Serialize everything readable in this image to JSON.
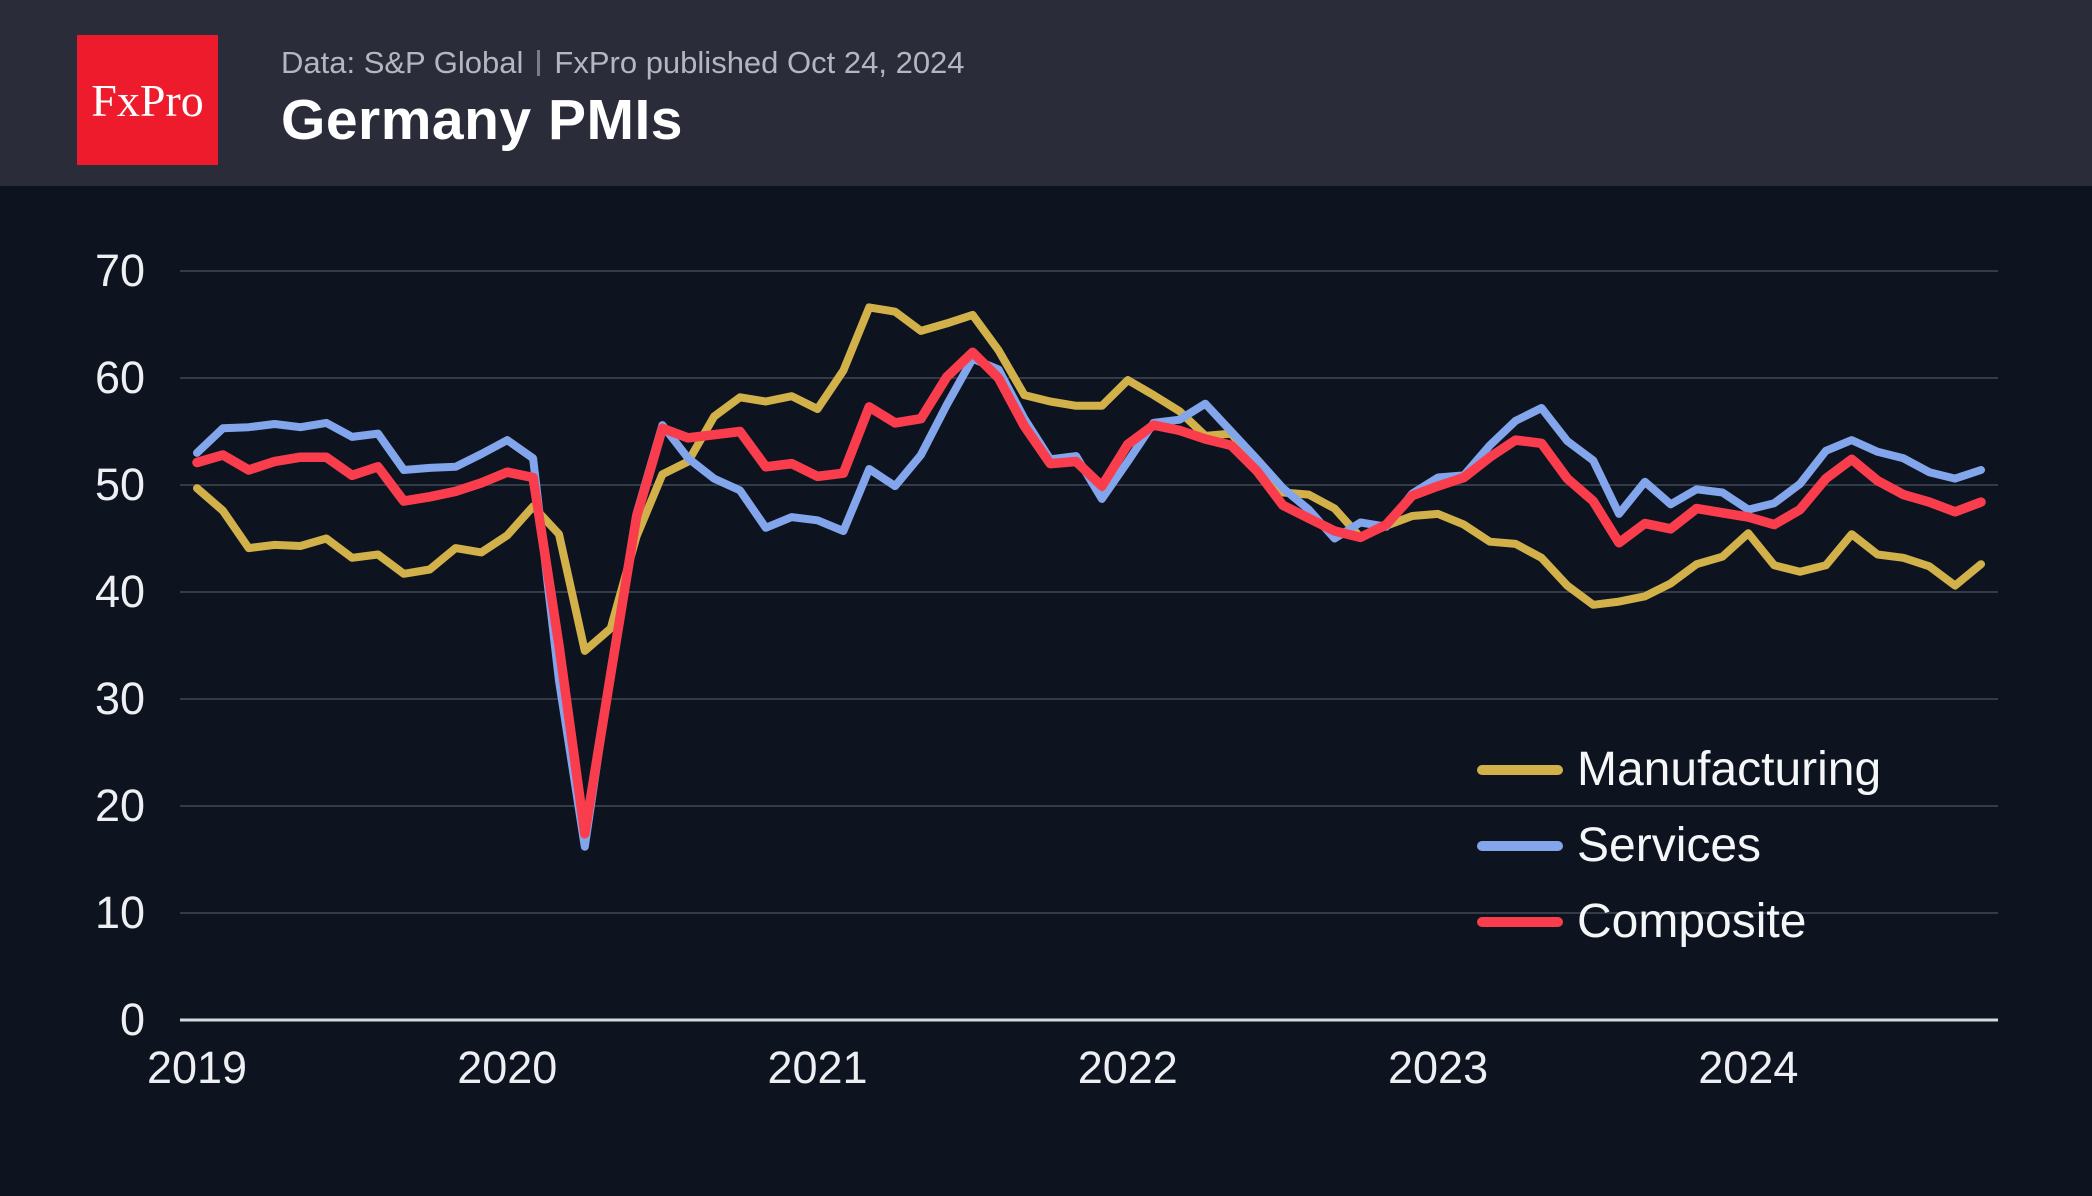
{
  "header": {
    "logo_text": "FxPro",
    "subtitle_left": "Data: S&P Global",
    "subtitle_right": "FxPro published Oct 24, 2024",
    "title": "Germany PMIs"
  },
  "colors": {
    "page_bg": "#0d1420",
    "header_bg": "#2a2d39",
    "logo_red": "#ee1b2d",
    "grid": "#343b48",
    "zero_axis": "#d6d9de",
    "tick_text": "#edeff2",
    "subtitle_text": "#b3b7bf",
    "title_text": "#ffffff"
  },
  "chart_data": {
    "type": "line",
    "title": "Germany PMIs",
    "x_unit": "month",
    "x_start": "2019-01",
    "x_end": "2024-10",
    "x_tick_labels": [
      "2019",
      "2020",
      "2021",
      "2022",
      "2023",
      "2024"
    ],
    "y_ticks": [
      0,
      10,
      20,
      30,
      40,
      50,
      60,
      70
    ],
    "ylim": [
      0,
      75
    ],
    "grid": "horizontal",
    "legend_position": "middle-right",
    "series": [
      {
        "name": "Manufacturing",
        "color": "#d2b14a",
        "stroke_width": 8,
        "values": [
          49.7,
          47.6,
          44.1,
          44.4,
          44.3,
          45.0,
          43.2,
          43.5,
          41.7,
          42.1,
          44.1,
          43.7,
          45.3,
          48.0,
          45.4,
          34.5,
          36.6,
          45.2,
          51.0,
          52.2,
          56.4,
          58.2,
          57.8,
          58.3,
          57.1,
          60.7,
          66.6,
          66.2,
          64.4,
          65.1,
          65.9,
          62.6,
          58.4,
          57.8,
          57.4,
          57.4,
          59.8,
          58.4,
          56.9,
          54.6,
          54.8,
          52.0,
          49.3,
          49.1,
          47.8,
          45.1,
          46.2,
          47.1,
          47.3,
          46.3,
          44.7,
          44.5,
          43.2,
          40.6,
          38.8,
          39.1,
          39.6,
          40.8,
          42.6,
          43.3,
          45.5,
          42.5,
          41.9,
          42.5,
          45.4,
          43.5,
          43.2,
          42.4,
          40.6,
          42.6
        ]
      },
      {
        "name": "Services",
        "color": "#83a5ec",
        "stroke_width": 8,
        "values": [
          53.0,
          55.3,
          55.4,
          55.7,
          55.4,
          55.8,
          54.5,
          54.8,
          51.4,
          51.6,
          51.7,
          52.9,
          54.2,
          52.5,
          31.7,
          16.2,
          32.6,
          47.3,
          55.6,
          52.5,
          50.6,
          49.5,
          46.0,
          47.0,
          46.7,
          45.7,
          51.5,
          49.9,
          52.8,
          57.5,
          61.8,
          60.8,
          56.2,
          52.4,
          52.7,
          48.7,
          52.2,
          55.8,
          56.1,
          57.6,
          55.0,
          52.4,
          49.7,
          47.7,
          45.0,
          46.5,
          46.1,
          49.2,
          50.7,
          50.9,
          53.7,
          56.0,
          57.2,
          54.1,
          52.3,
          47.3,
          50.3,
          48.2,
          49.6,
          49.3,
          47.7,
          48.3,
          50.1,
          53.2,
          54.2,
          53.1,
          52.5,
          51.2,
          50.6,
          51.4
        ]
      },
      {
        "name": "Composite",
        "color": "#fa3d4d",
        "stroke_width": 9.5,
        "values": [
          52.1,
          52.8,
          51.4,
          52.2,
          52.6,
          52.6,
          50.9,
          51.7,
          48.5,
          48.9,
          49.4,
          50.2,
          51.2,
          50.7,
          35.0,
          17.4,
          32.3,
          47.0,
          55.3,
          54.4,
          54.7,
          55.0,
          51.7,
          52.0,
          50.8,
          51.1,
          57.3,
          55.8,
          56.2,
          60.1,
          62.4,
          60.0,
          55.5,
          52.0,
          52.2,
          49.9,
          53.8,
          55.6,
          55.1,
          54.3,
          53.7,
          51.3,
          48.1,
          46.9,
          45.7,
          45.1,
          46.3,
          49.0,
          49.9,
          50.7,
          52.6,
          54.2,
          53.9,
          50.6,
          48.5,
          44.6,
          46.4,
          45.9,
          47.8,
          47.4,
          47.0,
          46.3,
          47.7,
          50.6,
          52.4,
          50.4,
          49.1,
          48.4,
          47.5,
          48.4
        ]
      }
    ]
  }
}
